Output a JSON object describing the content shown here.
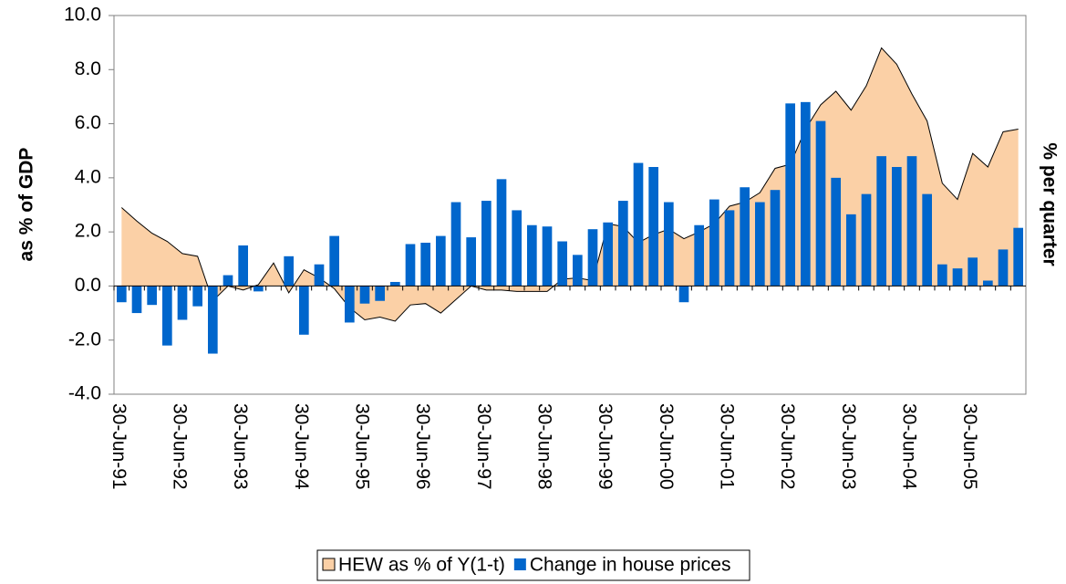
{
  "chart_data": {
    "type": "bar_area",
    "y_label": "as % of GDP",
    "y2_label": "% per quarter",
    "categories": [
      "30-Jun-91",
      null,
      null,
      null,
      "30-Jun-92",
      null,
      null,
      null,
      "30-Jun-93",
      null,
      null,
      null,
      "30-Jun-94",
      null,
      null,
      null,
      "30-Jun-95",
      null,
      null,
      null,
      "30-Jun-96",
      null,
      null,
      null,
      "30-Jun-97",
      null,
      null,
      null,
      "30-Jun-98",
      null,
      null,
      null,
      "30-Jun-99",
      null,
      null,
      null,
      "30-Jun-00",
      null,
      null,
      null,
      "30-Jun-01",
      null,
      null,
      null,
      "30-Jun-02",
      null,
      null,
      null,
      "30-Jun-03",
      null,
      null,
      null,
      "30-Jun-04",
      null,
      null,
      null,
      "30-Jun-05",
      null,
      null,
      null
    ],
    "series": [
      {
        "name": "HEW as % of Y(1-t)",
        "kind": "area",
        "color": "#FBD0A6",
        "values": [
          2.9,
          2.4,
          1.95,
          1.65,
          1.2,
          1.1,
          -0.55,
          0.0,
          -0.15,
          0.05,
          0.85,
          -0.25,
          0.6,
          0.3,
          -0.1,
          -0.8,
          -1.25,
          -1.15,
          -1.3,
          -0.7,
          -0.65,
          -1.0,
          -0.5,
          0.0,
          -0.15,
          -0.15,
          -0.2,
          -0.2,
          -0.2,
          0.25,
          0.3,
          0.2,
          2.3,
          2.2,
          1.6,
          1.9,
          2.1,
          1.75,
          2.0,
          2.3,
          2.95,
          3.1,
          3.45,
          4.35,
          4.5,
          5.8,
          6.7,
          7.2,
          6.5,
          7.4,
          8.8,
          8.2,
          7.1,
          6.1,
          3.8,
          3.2,
          4.9,
          4.4,
          5.7,
          5.8
        ]
      },
      {
        "name": "Change in house prices",
        "kind": "bar",
        "color": "#0066CC",
        "values": [
          -0.6,
          -1.0,
          -0.7,
          -2.2,
          -1.25,
          -0.75,
          -2.5,
          0.4,
          1.5,
          -0.2,
          0.0,
          1.1,
          -1.8,
          0.8,
          1.85,
          -1.35,
          -0.65,
          -0.55,
          0.15,
          1.55,
          1.6,
          1.85,
          3.1,
          1.8,
          3.15,
          3.95,
          2.8,
          2.25,
          2.2,
          1.65,
          1.15,
          2.1,
          2.35,
          3.15,
          4.55,
          4.4,
          3.1,
          -0.6,
          2.25,
          3.2,
          2.8,
          3.65,
          3.1,
          3.55,
          6.75,
          6.8,
          6.1,
          4.0,
          2.65,
          3.4,
          4.8,
          4.4,
          4.8,
          3.4,
          0.8,
          0.65,
          1.05,
          0.2,
          1.35,
          2.15
        ]
      }
    ],
    "ylim": [
      -4,
      10
    ],
    "yticks": [
      {
        "value": -4,
        "label": "-4.0"
      },
      {
        "value": -2,
        "label": "-2.0"
      },
      {
        "value": 0,
        "label": "0.0"
      },
      {
        "value": 2,
        "label": "2.0"
      },
      {
        "value": 4,
        "label": "4.0"
      },
      {
        "value": 6,
        "label": "6.0"
      },
      {
        "value": 8,
        "label": "8.0"
      },
      {
        "value": 10,
        "label": "10.0"
      }
    ],
    "legend": "bottom"
  }
}
